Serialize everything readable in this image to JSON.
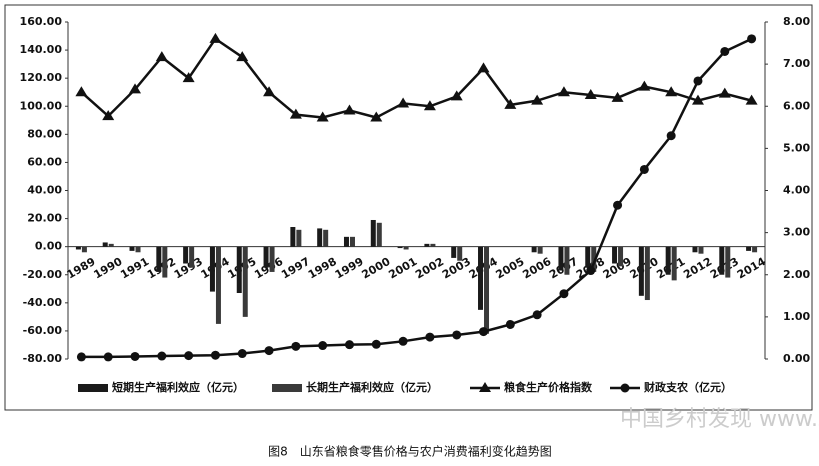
{
  "chart_data": {
    "type": "bar",
    "categories": [
      "1989",
      "1990",
      "1991",
      "1992",
      "1993",
      "1994",
      "1995",
      "1996",
      "1997",
      "1998",
      "1999",
      "2000",
      "2001",
      "2002",
      "2003",
      "2004",
      "2005",
      "2006",
      "2007",
      "2008",
      "2009",
      "2010",
      "2011",
      "2012",
      "2013",
      "2014"
    ],
    "series": [
      {
        "name": "短期生产福利效应（亿元）",
        "type": "bar",
        "color": "#1a1a1a",
        "values": [
          -2,
          3,
          -3,
          -18,
          -12,
          -32,
          -33,
          -15,
          14,
          13,
          7,
          19,
          -1,
          2,
          -8,
          -45,
          0,
          -4,
          -17,
          -15,
          -12,
          -35,
          -20,
          -4,
          -20,
          -3
        ]
      },
      {
        "name": "长期生产福利效应（亿元）",
        "type": "bar",
        "color": "#3a3a3a",
        "values": [
          -4,
          2,
          -4,
          -22,
          -15,
          -55,
          -50,
          -18,
          12,
          12,
          7,
          17,
          -2,
          2,
          -10,
          -62,
          0,
          -5,
          -20,
          -18,
          -14,
          -38,
          -24,
          -5,
          -22,
          -4
        ]
      },
      {
        "name": "粮食生产价格指数",
        "type": "line",
        "marker": "triangle",
        "color": "#111111",
        "values": [
          110,
          93,
          112,
          135,
          120,
          148,
          135,
          110,
          94,
          92,
          97,
          92,
          102,
          100,
          107,
          127,
          101,
          104,
          110,
          108,
          106,
          114,
          110,
          104,
          109,
          104
        ]
      },
      {
        "name": "财政支农（亿元）",
        "type": "line",
        "marker": "circle",
        "color": "#111111",
        "axis": "y2",
        "values": [
          0.05,
          0.05,
          0.06,
          0.07,
          0.08,
          0.09,
          0.13,
          0.2,
          0.3,
          0.32,
          0.34,
          0.35,
          0.42,
          0.52,
          0.57,
          0.65,
          0.82,
          1.05,
          1.55,
          2.1,
          3.65,
          4.5,
          5.3,
          6.6,
          7.3,
          7.6
        ]
      }
    ],
    "ylim": [
      -80,
      160
    ],
    "yticks": [
      {
        "value": -80,
        "label": "-80.00"
      },
      {
        "value": -60,
        "label": "-60.00"
      },
      {
        "value": -40,
        "label": "-40.00"
      },
      {
        "value": -20,
        "label": "-20.00"
      },
      {
        "value": 0,
        "label": "0.00"
      },
      {
        "value": 20,
        "label": "20.00"
      },
      {
        "value": 40,
        "label": "40.00"
      },
      {
        "value": 60,
        "label": "60.00"
      },
      {
        "value": 80,
        "label": "80.00"
      },
      {
        "value": 100,
        "label": "100.00"
      },
      {
        "value": 120,
        "label": "120.00"
      },
      {
        "value": 140,
        "label": "140.00"
      },
      {
        "value": 160,
        "label": "160.00"
      }
    ],
    "y2lim": [
      0,
      8
    ],
    "y2ticks": [
      {
        "value": 0,
        "label": "0.00"
      },
      {
        "value": 1,
        "label": "1.00"
      },
      {
        "value": 2,
        "label": "2.00"
      },
      {
        "value": 3,
        "label": "3.00"
      },
      {
        "value": 4,
        "label": "4.00"
      },
      {
        "value": 5,
        "label": "5.00"
      },
      {
        "value": 6,
        "label": "6.00"
      },
      {
        "value": 7,
        "label": "7.00"
      },
      {
        "value": 8,
        "label": "8.00"
      }
    ],
    "legend": "bottom",
    "caption": "图8　山东省粮食零售价格与农户消费福利变化趋势图",
    "watermark": "中国乡村发现 www.zgxcfx.com"
  }
}
